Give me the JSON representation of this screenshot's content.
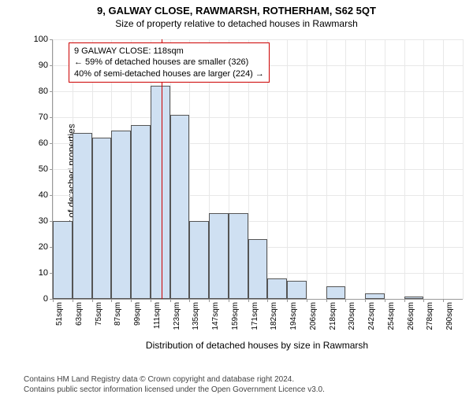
{
  "title": "9, GALWAY CLOSE, RAWMARSH, ROTHERHAM, S62 5QT",
  "subtitle": "Size of property relative to detached houses in Rawmarsh",
  "chart": {
    "type": "histogram",
    "ylabel": "Number of detached properties",
    "xlabel": "Distribution of detached houses by size in Rawmarsh",
    "ylim": [
      0,
      100
    ],
    "ytick_step": 10,
    "categories": [
      "51sqm",
      "63sqm",
      "75sqm",
      "87sqm",
      "99sqm",
      "111sqm",
      "123sqm",
      "135sqm",
      "147sqm",
      "159sqm",
      "171sqm",
      "182sqm",
      "194sqm",
      "206sqm",
      "218sqm",
      "230sqm",
      "242sqm",
      "254sqm",
      "266sqm",
      "278sqm",
      "290sqm"
    ],
    "values": [
      30,
      64,
      62,
      65,
      67,
      82,
      71,
      30,
      33,
      33,
      23,
      8,
      7,
      0,
      5,
      0,
      2,
      0,
      1,
      0,
      0
    ],
    "bar_fill": "#cfe0f2",
    "bar_border": "#555555",
    "grid_color": "#e8e8e8",
    "background_color": "#ffffff",
    "marker_x": 118,
    "x_start": 51,
    "x_step": 12,
    "marker_color": "#cc0000",
    "annotation": {
      "line1": "9 GALWAY CLOSE: 118sqm",
      "line2": "← 59% of detached houses are smaller (326)",
      "line3": "40% of semi-detached houses are larger (224) →"
    },
    "title_fontsize": 13,
    "label_fontsize": 12,
    "tick_fontsize": 11
  },
  "footer": {
    "line1": "Contains HM Land Registry data © Crown copyright and database right 2024.",
    "line2": "Contains public sector information licensed under the Open Government Licence v3.0."
  }
}
